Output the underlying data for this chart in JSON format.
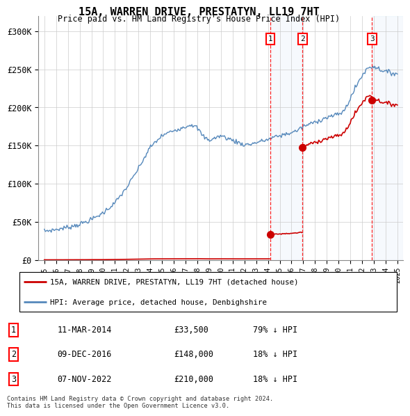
{
  "title": "15A, WARREN DRIVE, PRESTATYN, LL19 7HT",
  "subtitle": "Price paid vs. HM Land Registry's House Price Index (HPI)",
  "hpi_color": "#5588bb",
  "price_color": "#cc0000",
  "background_color": "#ffffff",
  "grid_color": "#cccccc",
  "sale_year_floats": [
    2014.19,
    2016.94,
    2022.85
  ],
  "sale_prices": [
    33500,
    148000,
    210000
  ],
  "sale_labels": [
    "1",
    "2",
    "3"
  ],
  "legend_entries": [
    "15A, WARREN DRIVE, PRESTATYN, LL19 7HT (detached house)",
    "HPI: Average price, detached house, Denbighshire"
  ],
  "table_rows": [
    [
      "1",
      "11-MAR-2014",
      "£33,500",
      "79% ↓ HPI"
    ],
    [
      "2",
      "09-DEC-2016",
      "£148,000",
      "18% ↓ HPI"
    ],
    [
      "3",
      "07-NOV-2022",
      "£210,000",
      "18% ↓ HPI"
    ]
  ],
  "footer": "Contains HM Land Registry data © Crown copyright and database right 2024.\nThis data is licensed under the Open Government Licence v3.0.",
  "ylim": [
    0,
    320000
  ],
  "yticks": [
    0,
    50000,
    100000,
    150000,
    200000,
    250000,
    300000
  ],
  "ytick_labels": [
    "£0",
    "£50K",
    "£100K",
    "£150K",
    "£200K",
    "£250K",
    "£300K"
  ],
  "xmin": 1994.5,
  "xmax": 2025.5
}
